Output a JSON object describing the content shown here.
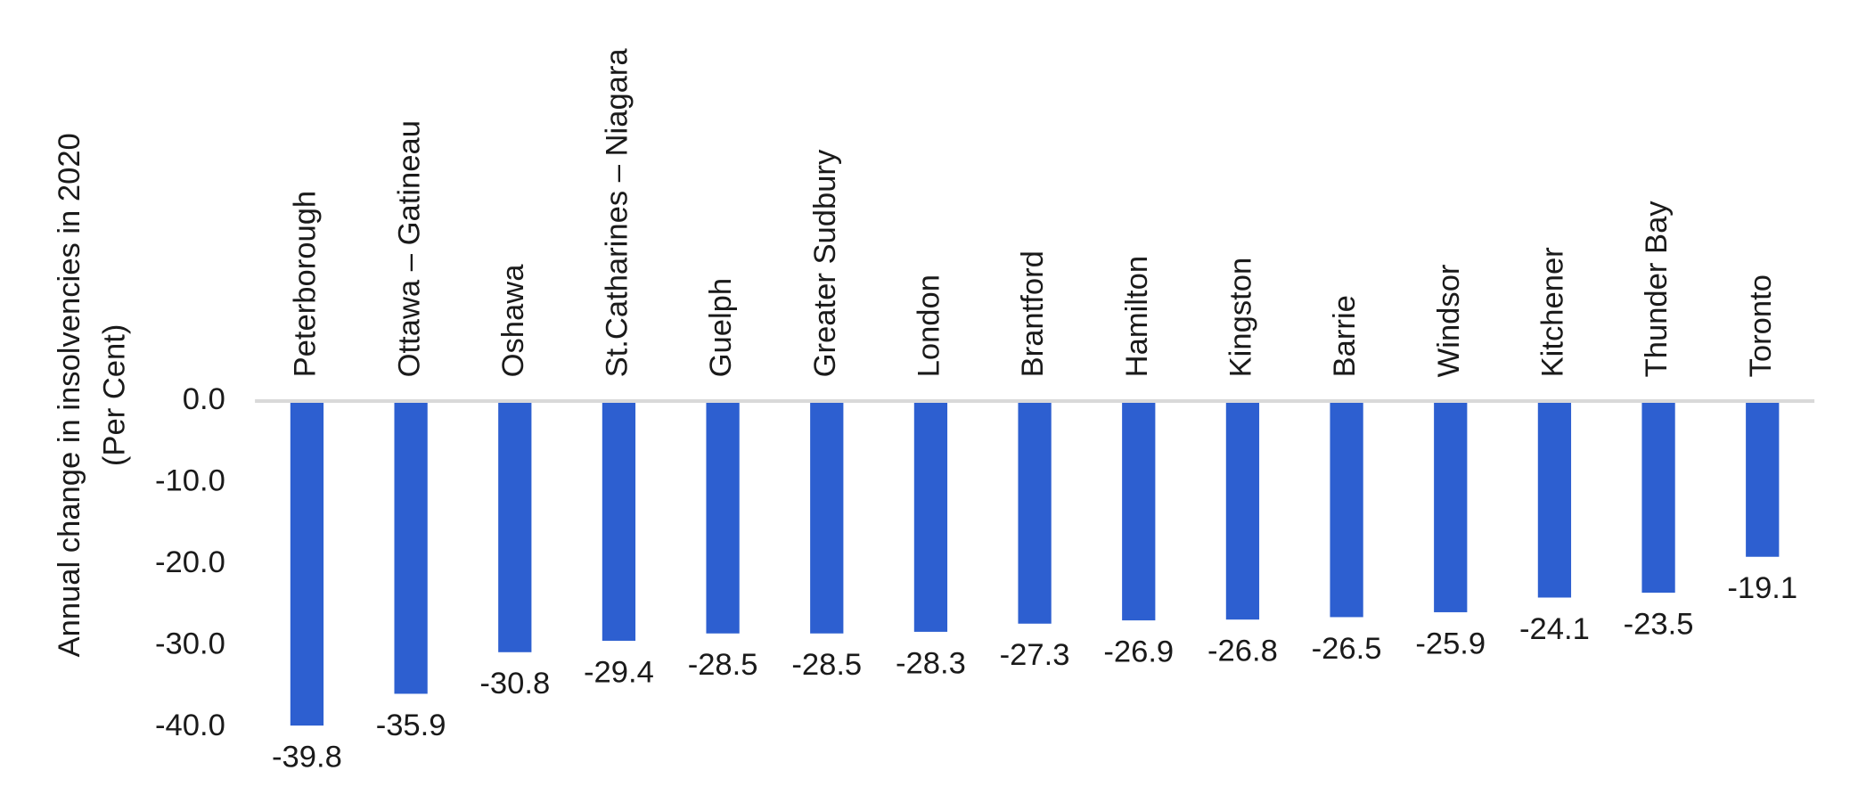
{
  "chart_data": {
    "type": "bar",
    "ylabel": [
      "Annual change in insolvencies in 2020",
      "(Per Cent)"
    ],
    "categories": [
      "Peterborough",
      "Ottawa – Gatineau",
      "Oshawa",
      "St.Catharines – Niagara",
      "Guelph",
      "Greater Sudbury",
      "London",
      "Brantford",
      "Hamilton",
      "Kingston",
      "Barrie",
      "Windsor",
      "Kitchener",
      "Thunder Bay",
      "Toronto"
    ],
    "values": [
      -39.8,
      -35.9,
      -30.8,
      -29.4,
      -28.5,
      -28.5,
      -28.3,
      -27.3,
      -26.9,
      -26.8,
      -26.5,
      -25.9,
      -24.1,
      -23.5,
      -19.1
    ],
    "color": "#2d5fd0",
    "ylim": [
      -40,
      0
    ],
    "yticks": [
      {
        "value": 0,
        "label": "0.0"
      },
      {
        "value": -10,
        "label": "-10.0"
      },
      {
        "value": -20,
        "label": "-20.0"
      },
      {
        "value": -30,
        "label": "-30.0"
      },
      {
        "value": -40,
        "label": "-40.0"
      }
    ],
    "grid": false
  }
}
